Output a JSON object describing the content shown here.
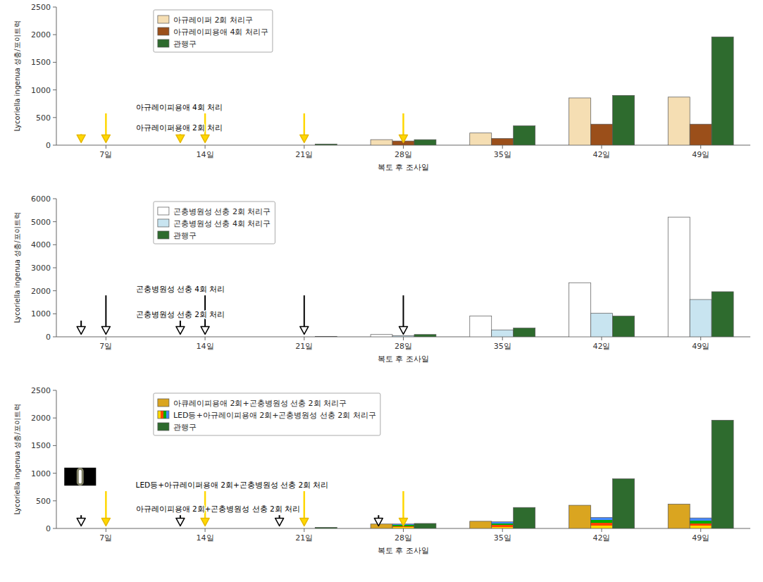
{
  "chart_data": [
    {
      "type": "bar",
      "categories": [
        "7일",
        "14일",
        "21일",
        "28일",
        "35일",
        "42일",
        "49일"
      ],
      "xlabel": "복토 후 조사일",
      "ylabel": "Lycoriella ingenua 성충/포이트럭",
      "ylim": [
        0,
        2500
      ],
      "yticks": [
        0,
        500,
        1000,
        1500,
        2000,
        2500
      ],
      "grid": false,
      "legend": "upper left",
      "series": [
        {
          "name": "아규레이퍼 2회 처리구",
          "color": "#F5DEB3",
          "values": [
            0,
            0,
            0,
            100,
            220,
            855,
            870
          ]
        },
        {
          "name": "아규레이피용애 4회 처리구",
          "color": "#9B4F1A",
          "values": [
            0,
            0,
            0,
            75,
            120,
            380,
            380
          ]
        },
        {
          "name": "관행구",
          "color": "#2E6B2E",
          "values": [
            0,
            0,
            20,
            100,
            350,
            900,
            1960
          ]
        }
      ],
      "annotations": [
        "아규레이피용애 4회 처리",
        "아규레이퍼용애 2회 처리"
      ]
    },
    {
      "type": "bar",
      "categories": [
        "7일",
        "14일",
        "21일",
        "28일",
        "35일",
        "42일",
        "49일"
      ],
      "xlabel": "복토 후 조사일",
      "ylabel": "Lycoriella ingenua 성충/포이트럭",
      "ylim": [
        0,
        6000
      ],
      "yticks": [
        0,
        1000,
        2000,
        3000,
        4000,
        5000,
        6000
      ],
      "grid": false,
      "legend": "upper left",
      "series": [
        {
          "name": "곤충병원성 선충 2회 처리구",
          "color": "#FFFFFF",
          "values": [
            0,
            0,
            0,
            100,
            900,
            2350,
            5200
          ]
        },
        {
          "name": "곤충병원성 선충 4회 처리구",
          "color": "#C8E4F0",
          "values": [
            0,
            0,
            0,
            50,
            300,
            1020,
            1620
          ]
        },
        {
          "name": "관행구",
          "color": "#2E6B2E",
          "values": [
            0,
            0,
            20,
            100,
            380,
            900,
            1960
          ]
        }
      ],
      "annotations": [
        "곤충병원성 선충 4회 처리",
        "곤충병원성 선충 2회 처리"
      ]
    },
    {
      "type": "bar",
      "categories": [
        "7일",
        "14일",
        "21일",
        "28일",
        "35일",
        "42일",
        "49일"
      ],
      "xlabel": "복토 후 조사일",
      "ylabel": "Lycoriella ingenua 성충/포이트럭",
      "ylim": [
        0,
        2500
      ],
      "yticks": [
        0,
        500,
        1000,
        1500,
        2000,
        2500
      ],
      "grid": false,
      "legend": "upper left",
      "series": [
        {
          "name": "아큐레이피용애 2회+곤충병원성 선충 2회 처리구",
          "color": "#DAA520",
          "values": [
            0,
            0,
            0,
            80,
            130,
            420,
            440
          ]
        },
        {
          "name": "LED등+아규레이피용애 2회+곤충병원성 선충 2회 처리구",
          "colors": [
            "#FFD700",
            "#FF4500",
            "#00AA00",
            "#4488FF"
          ],
          "values": [
            0,
            0,
            0,
            80,
            120,
            200,
            190
          ]
        },
        {
          "name": "관행구",
          "color": "#2E6B2E",
          "values": [
            0,
            0,
            20,
            90,
            380,
            900,
            1960
          ]
        }
      ],
      "annotations": [
        "LED등+아규레이퍼용애 2회+곤충병원성 선충 2회 처리",
        "아규레이피용애 2회+곤충병원성 선충 2회 처리"
      ]
    }
  ]
}
